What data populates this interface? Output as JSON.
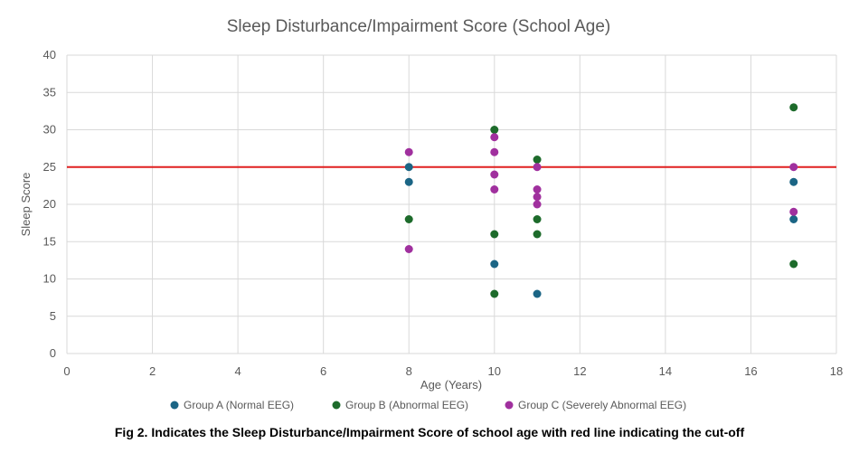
{
  "caption": "Fig 2. Indicates the Sleep Disturbance/Impairment Score of school age with red line indicating the cut-off",
  "chart_data": {
    "type": "scatter",
    "title": "Sleep Disturbance/Impairment Score (School Age)",
    "xlabel": "Age (Years)",
    "ylabel": "Sleep Score",
    "xlim": [
      0,
      18
    ],
    "ylim": [
      0,
      40
    ],
    "xticks": [
      0,
      2,
      4,
      6,
      8,
      10,
      12,
      14,
      16,
      18
    ],
    "yticks": [
      0,
      5,
      10,
      15,
      20,
      25,
      30,
      35,
      40
    ],
    "grid": true,
    "legend_position": "bottom",
    "cutoff": {
      "name": "cut-off",
      "y": 25,
      "color": "#e02020"
    },
    "series": [
      {
        "name": "Group A (Normal EEG)",
        "color": "#1b6585",
        "points": [
          [
            8,
            25
          ],
          [
            8,
            23
          ],
          [
            10,
            12
          ],
          [
            11,
            8
          ],
          [
            17,
            23
          ],
          [
            17,
            18
          ]
        ]
      },
      {
        "name": "Group B (Abnormal EEG)",
        "color": "#1d6b2b",
        "points": [
          [
            8,
            18
          ],
          [
            10,
            30
          ],
          [
            10,
            16
          ],
          [
            10,
            8
          ],
          [
            11,
            26
          ],
          [
            11,
            18
          ],
          [
            11,
            16
          ],
          [
            17,
            33
          ],
          [
            17,
            12
          ]
        ]
      },
      {
        "name": "Group C (Severely Abnormal EEG)",
        "color": "#a0309e",
        "points": [
          [
            8,
            27
          ],
          [
            8,
            14
          ],
          [
            10,
            29
          ],
          [
            10,
            27
          ],
          [
            10,
            24
          ],
          [
            10,
            22
          ],
          [
            11,
            25
          ],
          [
            11,
            22
          ],
          [
            11,
            21
          ],
          [
            11,
            20
          ],
          [
            17,
            25
          ],
          [
            17,
            19
          ]
        ]
      }
    ]
  }
}
